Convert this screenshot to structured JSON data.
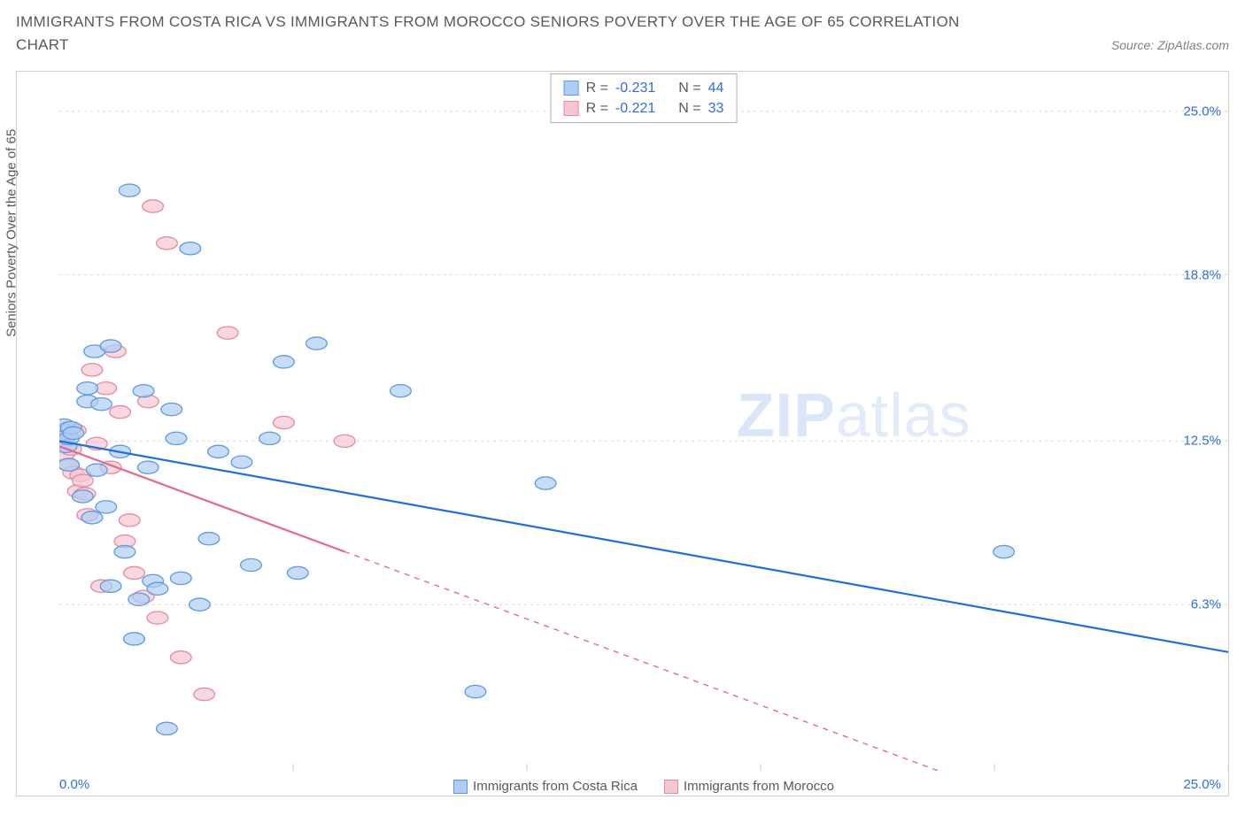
{
  "title": "IMMIGRANTS FROM COSTA RICA VS IMMIGRANTS FROM MOROCCO SENIORS POVERTY OVER THE AGE OF 65 CORRELATION CHART",
  "source_label": "Source: ZipAtlas.com",
  "y_axis_label": "Seniors Poverty Over the Age of 65",
  "watermark_bold": "ZIP",
  "watermark_light": "atlas",
  "chart": {
    "type": "scatter",
    "xlim": [
      0,
      25
    ],
    "ylim": [
      0,
      26.5
    ],
    "x_ticks": [
      0,
      5,
      10,
      15,
      20,
      25
    ],
    "x_tick_labels": {
      "min": "0.0%",
      "max": "25.0%"
    },
    "y_ticks": [
      6.3,
      12.5,
      18.8,
      25.0
    ],
    "y_tick_labels": [
      "6.3%",
      "12.5%",
      "18.8%",
      "25.0%"
    ],
    "grid_color": "#d8d8d8",
    "grid_dash": "3,4",
    "background_color": "#ffffff",
    "axis_color": "#cfcfcf"
  },
  "series": {
    "costa_rica": {
      "label": "Immigrants from Costa Rica",
      "marker_fill": "#aecdf4",
      "marker_stroke": "#5f9be0",
      "marker_opacity": 0.7,
      "marker_radius": 9,
      "line_color": "#1f6fd8",
      "line_width": 2.2,
      "stats": {
        "R": "-0.231",
        "N": "44"
      },
      "trend": {
        "x1": 0,
        "y1": 12.5,
        "x2": 25,
        "y2": 4.5,
        "solid_until_x": 25
      },
      "points": [
        [
          0.1,
          12.9
        ],
        [
          0.1,
          13.1
        ],
        [
          0.15,
          12.3
        ],
        [
          0.2,
          12.6
        ],
        [
          0.2,
          11.6
        ],
        [
          0.25,
          13.0
        ],
        [
          0.3,
          12.8
        ],
        [
          0.5,
          10.4
        ],
        [
          0.6,
          14.0
        ],
        [
          0.6,
          14.5
        ],
        [
          0.7,
          9.6
        ],
        [
          0.75,
          15.9
        ],
        [
          0.8,
          11.4
        ],
        [
          0.9,
          13.9
        ],
        [
          1.0,
          10.0
        ],
        [
          1.1,
          16.1
        ],
        [
          1.1,
          7.0
        ],
        [
          1.3,
          12.1
        ],
        [
          1.4,
          8.3
        ],
        [
          1.5,
          22.0
        ],
        [
          1.6,
          5.0
        ],
        [
          1.7,
          6.5
        ],
        [
          1.8,
          14.4
        ],
        [
          1.9,
          11.5
        ],
        [
          2.0,
          7.2
        ],
        [
          2.1,
          6.9
        ],
        [
          2.3,
          1.6
        ],
        [
          2.4,
          13.7
        ],
        [
          2.5,
          12.6
        ],
        [
          2.6,
          7.3
        ],
        [
          2.8,
          19.8
        ],
        [
          3.0,
          6.3
        ],
        [
          3.2,
          8.8
        ],
        [
          3.4,
          12.1
        ],
        [
          3.9,
          11.7
        ],
        [
          4.1,
          7.8
        ],
        [
          4.5,
          12.6
        ],
        [
          4.8,
          15.5
        ],
        [
          5.1,
          7.5
        ],
        [
          5.5,
          16.2
        ],
        [
          7.3,
          14.4
        ],
        [
          8.9,
          3.0
        ],
        [
          10.4,
          10.9
        ],
        [
          20.2,
          8.3
        ]
      ]
    },
    "morocco": {
      "label": "Immigrants from Morocco",
      "marker_fill": "#f6c6d2",
      "marker_stroke": "#e48aa2",
      "marker_opacity": 0.7,
      "marker_radius": 9,
      "line_color": "#e36a8c",
      "line_width": 2.2,
      "stats": {
        "R": "-0.221",
        "N": "33"
      },
      "trend": {
        "x1": 0,
        "y1": 12.3,
        "x2": 18.8,
        "y2": 0.0,
        "solid_until_x": 6.1
      },
      "points": [
        [
          0.1,
          12.5
        ],
        [
          0.1,
          12.0
        ],
        [
          0.15,
          12.8
        ],
        [
          0.2,
          13.0
        ],
        [
          0.2,
          11.6
        ],
        [
          0.25,
          12.2
        ],
        [
          0.3,
          11.3
        ],
        [
          0.35,
          12.9
        ],
        [
          0.4,
          10.6
        ],
        [
          0.45,
          11.2
        ],
        [
          0.5,
          11.0
        ],
        [
          0.55,
          10.5
        ],
        [
          0.6,
          9.7
        ],
        [
          0.7,
          15.2
        ],
        [
          0.8,
          12.4
        ],
        [
          0.9,
          7.0
        ],
        [
          1.0,
          14.5
        ],
        [
          1.1,
          11.5
        ],
        [
          1.2,
          15.9
        ],
        [
          1.3,
          13.6
        ],
        [
          1.4,
          8.7
        ],
        [
          1.5,
          9.5
        ],
        [
          1.6,
          7.5
        ],
        [
          1.8,
          6.6
        ],
        [
          1.9,
          14.0
        ],
        [
          2.0,
          21.4
        ],
        [
          2.1,
          5.8
        ],
        [
          2.3,
          20.0
        ],
        [
          2.6,
          4.3
        ],
        [
          3.1,
          2.9
        ],
        [
          3.6,
          16.6
        ],
        [
          4.8,
          13.2
        ],
        [
          6.1,
          12.5
        ]
      ]
    }
  },
  "stats_box_labels": {
    "R": "R =",
    "N": "N ="
  },
  "colors": {
    "text_gray": "#595959",
    "link_blue": "#2f6fd8"
  }
}
